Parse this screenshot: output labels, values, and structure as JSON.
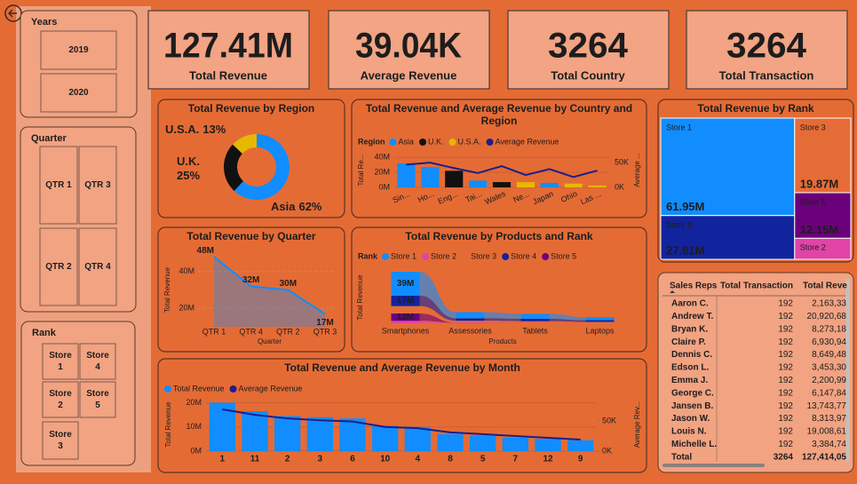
{
  "slicers": [
    {
      "title": "Years",
      "items": [
        "2019",
        "2020"
      ]
    },
    {
      "title": "Quarter",
      "items": [
        "QTR 1",
        "QTR 3",
        "QTR 2",
        "QTR 4"
      ]
    },
    {
      "title": "Rank",
      "items": [
        "Store 1",
        "Store 4",
        "Store 2",
        "Store 5",
        "Store 3"
      ]
    }
  ],
  "cards": [
    {
      "value": "127.41M",
      "label": "Total Revenue"
    },
    {
      "value": "39.04K",
      "label": "Average Revenue"
    },
    {
      "value": 3264,
      "label": "Total Country"
    },
    {
      "value": 3264,
      "label": "Total Transaction"
    }
  ],
  "chart_data": [
    {
      "type": "pie",
      "title": "Total Revenue by Region",
      "categories": [
        "Asia",
        "U.K.",
        "U.S.A."
      ],
      "values": [
        62,
        25,
        13
      ],
      "value_labels": [
        "62%",
        "25%",
        "13%"
      ],
      "colors": [
        "#118DFF",
        "#111111",
        "#E6B800"
      ]
    },
    {
      "type": "combo",
      "title": "Total Revenue and Average Revenue by Country and Region",
      "legend_title": "Region",
      "categories": [
        "Sin...",
        "Ho...",
        "Eng...",
        "Tai...",
        "Wales",
        "Ne...",
        "Japan",
        "Ohio",
        "Las ..."
      ],
      "series": [
        {
          "name": "Asia",
          "color": "#118DFF",
          "values": [
            32,
            27,
            null,
            9,
            null,
            null,
            6,
            null,
            null
          ]
        },
        {
          "name": "U.K.",
          "color": "#111111",
          "values": [
            null,
            null,
            22,
            null,
            7,
            null,
            null,
            null,
            null
          ]
        },
        {
          "name": "U.S.A.",
          "color": "#E6B800",
          "values": [
            null,
            null,
            null,
            null,
            null,
            7,
            null,
            5,
            2.5
          ]
        },
        {
          "name": "Average Revenue",
          "color": "#1B1F8A",
          "type": "line",
          "axis": "y2",
          "values": [
            46,
            50,
            39,
            29,
            43,
            25,
            37,
            21,
            34
          ]
        }
      ],
      "ylabel": "Total Re...",
      "y2label": "Average ...",
      "ylim": [
        0,
        46
      ],
      "yticks": [
        {
          "value": 0,
          "label": "0M"
        },
        {
          "value": 20,
          "label": "20M"
        },
        {
          "value": 40,
          "label": "40M"
        }
      ],
      "y2lim": [
        0,
        70
      ],
      "y2ticks": [
        {
          "value": 0,
          "label": "0K"
        },
        {
          "value": 50,
          "label": "50K"
        }
      ]
    },
    {
      "type": "area",
      "title": "Total Revenue by Quarter",
      "categories": [
        "QTR 1",
        "QTR 4",
        "QTR 2",
        "QTR 3"
      ],
      "values": [
        48,
        32,
        30,
        17
      ],
      "value_labels": [
        "48M",
        "32M",
        "30M",
        "17M"
      ],
      "color": "#118DFF",
      "xlabel": "Quarter",
      "ylabel": "Total Revenue",
      "ylim": [
        10,
        50
      ],
      "yticks": [
        {
          "value": 20,
          "label": "20M"
        },
        {
          "value": 40,
          "label": "40M"
        }
      ],
      "grid": true
    },
    {
      "type": "ribbon",
      "title": "Total Revenue by Products and Rank",
      "legend_title": "Rank",
      "categories": [
        "Smartphones",
        "Assessories",
        "Tablets",
        "Laptops"
      ],
      "series": [
        {
          "name": "Store 1",
          "color": "#118DFF",
          "values": [
            39,
            10,
            8,
            4.95
          ],
          "value_labels": [
            "39M",
            null,
            null,
            null
          ]
        },
        {
          "name": "Store 2",
          "color": "#E044A7",
          "values": [
            4,
            1,
            0.4,
            0.2
          ]
        },
        {
          "name": "Store 3",
          "color": "#E66C37",
          "values": [
            12,
            3,
            2.87,
            2
          ]
        },
        {
          "name": "Store 4",
          "color": "#12239E",
          "values": [
            17,
            4,
            4,
            2.81
          ],
          "value_labels": [
            "17M",
            null,
            null,
            null
          ]
        },
        {
          "name": "Store 5",
          "color": "#6B007B",
          "values": [
            12,
            0.1,
            0.03,
            0.02
          ],
          "value_labels": [
            "12M",
            null,
            null,
            null
          ]
        }
      ],
      "xlabel": "Products",
      "ylabel": "Total Revenue"
    },
    {
      "type": "treemap",
      "title": "Total Revenue by Rank",
      "categories": [
        "Store 1",
        "Store 4",
        "Store 3",
        "Store 5",
        "Store 2"
      ],
      "values": [
        61.95,
        27.81,
        19.87,
        12.15,
        5.6
      ],
      "value_labels": [
        "61.95M",
        "27.81M",
        "19.87M",
        "12.15M",
        null
      ],
      "colors": [
        "#118DFF",
        "#12239E",
        "#E66C37",
        "#6B007B",
        "#E044A7"
      ]
    },
    {
      "type": "combo",
      "title": "Total Revenue and Average Revenue by Month",
      "categories": [
        "1",
        "11",
        "2",
        "3",
        "6",
        "10",
        "4",
        "8",
        "5",
        "7",
        "12",
        "9"
      ],
      "series": [
        {
          "name": "Total Revenue",
          "color": "#118DFF",
          "values": [
            20,
            16.5,
            14.5,
            14,
            13.5,
            10.5,
            10,
            7,
            6.5,
            5.5,
            5,
            4.5
          ]
        },
        {
          "name": "Average Revenue",
          "color": "#1B1F8A",
          "type": "line",
          "axis": "y2",
          "values": [
            69,
            60,
            54,
            51,
            49,
            40,
            38,
            31,
            28,
            25,
            22,
            19
          ]
        }
      ],
      "ylabel": "Total Revenue",
      "y2label": "Average Rev...",
      "ylim": [
        0,
        22
      ],
      "yticks": [
        {
          "value": 0,
          "label": "0M"
        },
        {
          "value": 10,
          "label": "10M"
        },
        {
          "value": 20,
          "label": "20M"
        }
      ],
      "y2lim": [
        0,
        88
      ],
      "y2ticks": [
        {
          "value": 0,
          "label": "0K"
        },
        {
          "value": 50,
          "label": "50K"
        }
      ]
    }
  ],
  "table": {
    "columns": [
      "Sales Reps",
      "Total Transaction",
      "Total Revenue"
    ],
    "rows": [
      [
        "Aaron C.",
        192,
        "2,163,33"
      ],
      [
        "Andrew T.",
        192,
        "20,920,68"
      ],
      [
        "Bryan K.",
        192,
        "8,273,18"
      ],
      [
        "Claire P.",
        192,
        "6,930,94"
      ],
      [
        "Dennis C.",
        192,
        "8,649,48"
      ],
      [
        "Edson L.",
        192,
        "3,453,30"
      ],
      [
        "Emma J.",
        192,
        "2,200,99"
      ],
      [
        "George C.",
        192,
        "6,147,84"
      ],
      [
        "Jansen B.",
        192,
        "13,743,77"
      ],
      [
        "Jason W.",
        192,
        "8,313,97"
      ],
      [
        "Louis N.",
        192,
        "19,008,61"
      ],
      [
        "Michelle L.",
        192,
        "3,384,74"
      ],
      [
        "Total",
        3264,
        "127,414,05"
      ]
    ]
  }
}
